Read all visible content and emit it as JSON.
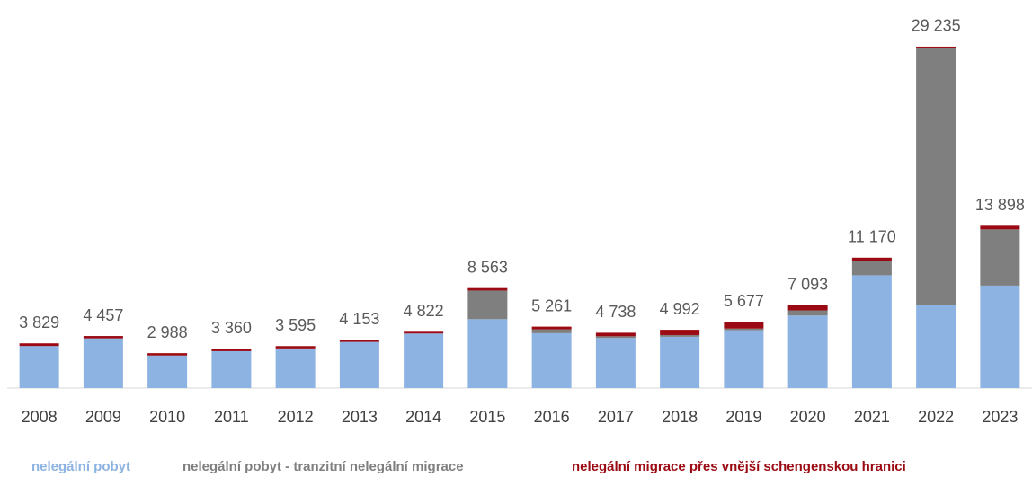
{
  "chart_data": {
    "type": "stacked_bar",
    "categories": [
      "2008",
      "2009",
      "2010",
      "2011",
      "2012",
      "2013",
      "2014",
      "2015",
      "2016",
      "2017",
      "2018",
      "2019",
      "2020",
      "2021",
      "2022",
      "2023"
    ],
    "series": [
      {
        "name": "nelegální pobyt",
        "color": "#8db3e2",
        "values": [
          3600,
          4257,
          2788,
          3160,
          3395,
          3953,
          4672,
          5900,
          4700,
          4288,
          4392,
          4947,
          6213,
          9662,
          7155,
          8775
        ]
      },
      {
        "name": "nelegální pobyt - tranzitní nelegální migrace",
        "color": "#7f7f7f",
        "values": [
          0,
          0,
          0,
          0,
          0,
          0,
          0,
          2450,
          330,
          150,
          150,
          150,
          440,
          1233,
          22000,
          4813
        ]
      },
      {
        "name": "nelegální migrace přes vnější schengenskou hranici",
        "color": "#9b0a12",
        "values": [
          229,
          200,
          200,
          200,
          200,
          200,
          150,
          213,
          231,
          300,
          450,
          580,
          440,
          275,
          80,
          310
        ]
      }
    ],
    "totals": [
      3829,
      4457,
      2988,
      3360,
      3595,
      4153,
      4822,
      8563,
      5261,
      4738,
      4992,
      5677,
      7093,
      11170,
      29235,
      13898
    ],
    "total_labels": [
      "3 829",
      "4 457",
      "2 988",
      "3 360",
      "3 595",
      "4 153",
      "4 822",
      "8 563",
      "5 261",
      "4 738",
      "4 992",
      "5 677",
      "7 093",
      "11 170",
      "29 235",
      "13 898"
    ],
    "ylim": [
      0,
      31000
    ]
  }
}
